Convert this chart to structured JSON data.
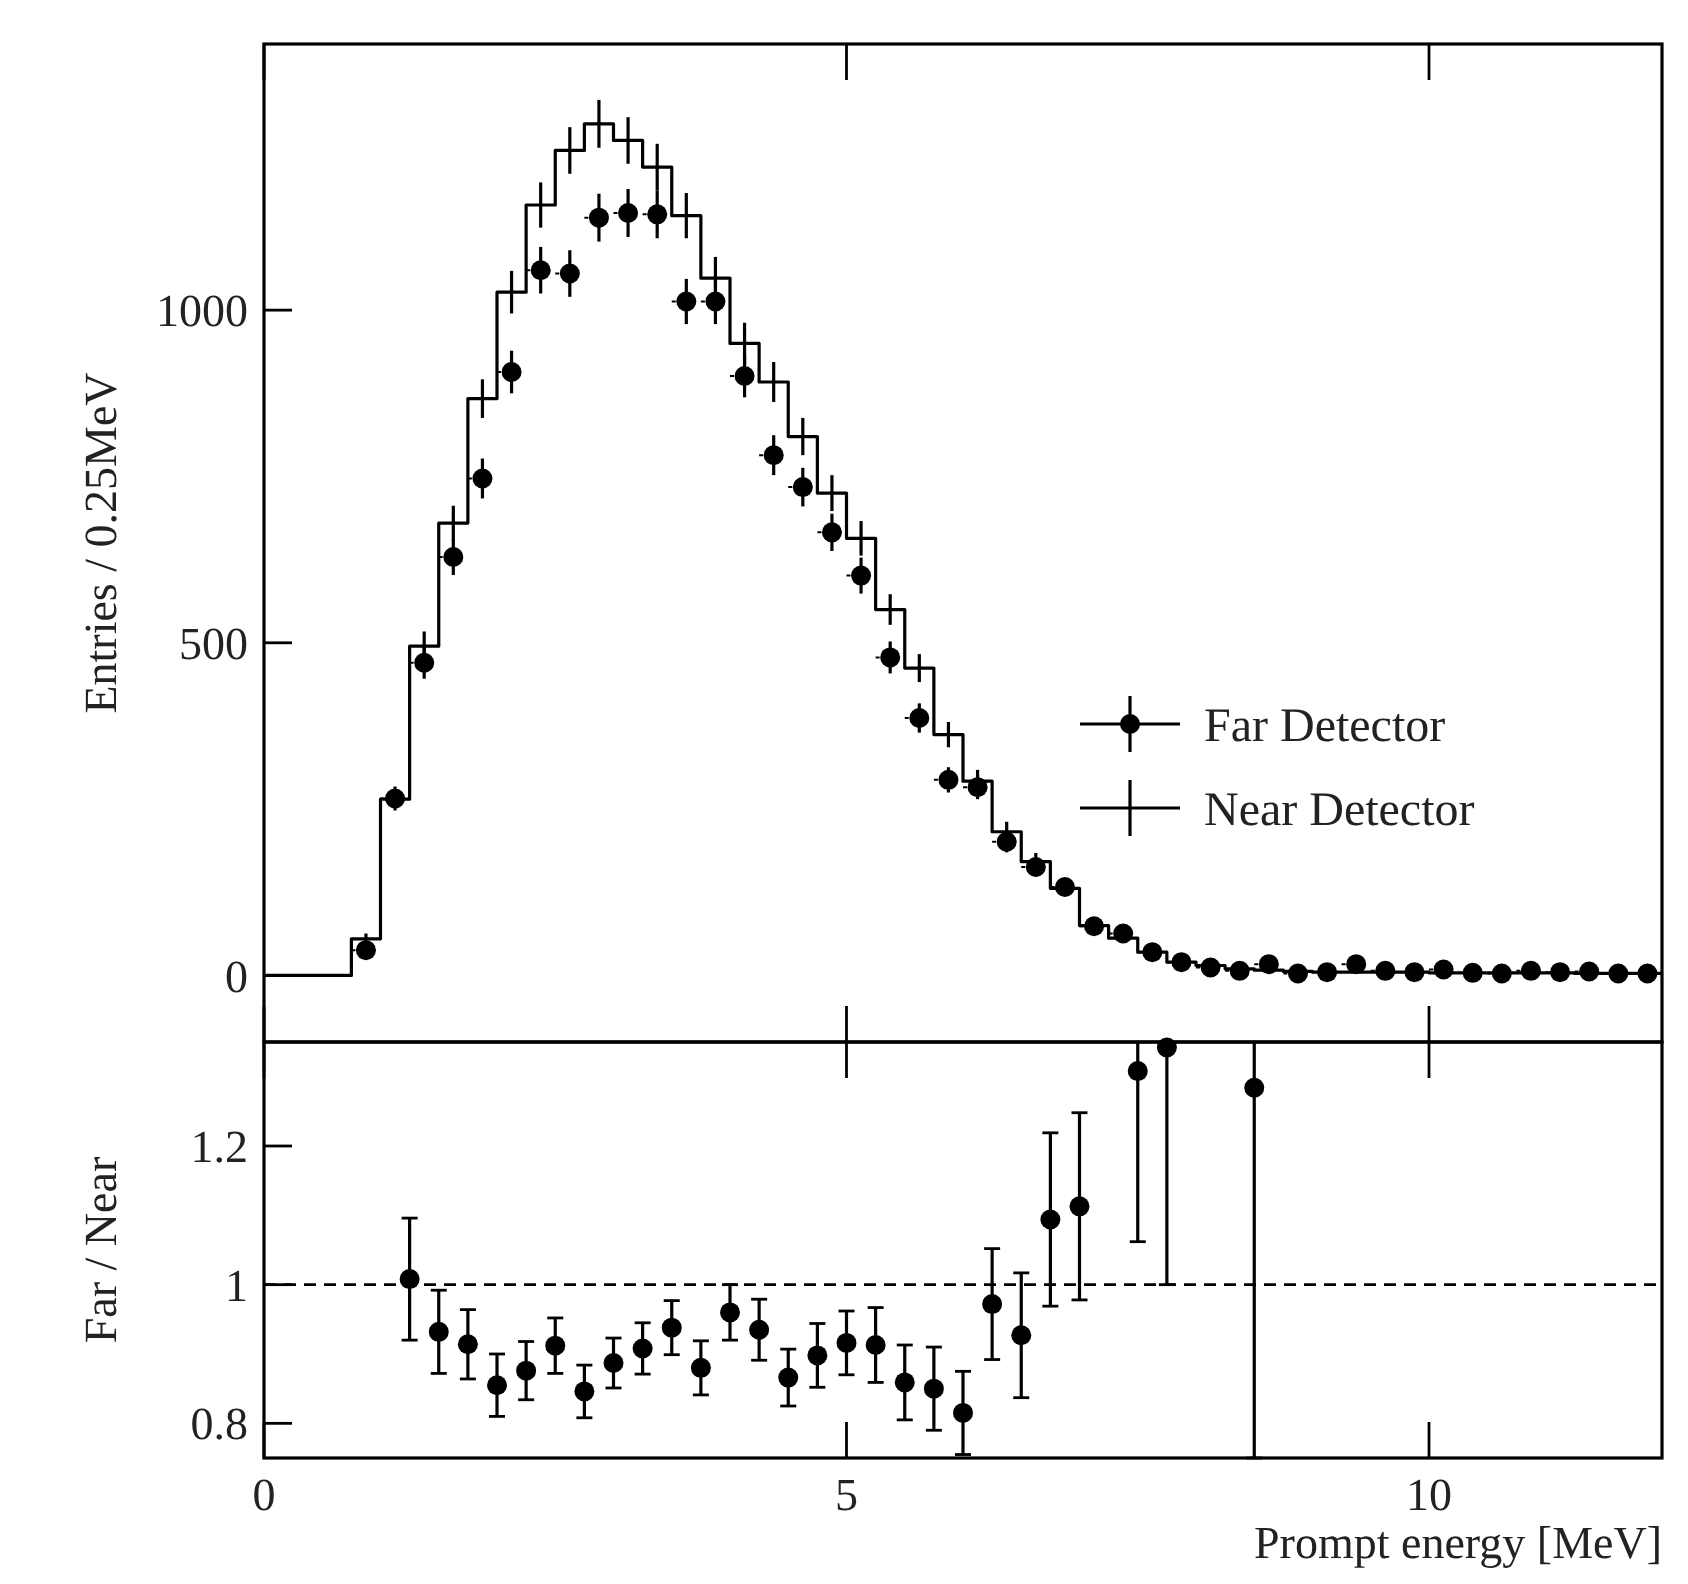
{
  "chart_data": [
    {
      "type": "step",
      "ylabel": "Entries / 0.25MeV",
      "xlim": [
        0,
        12
      ],
      "xticks": [
        0,
        5,
        10
      ],
      "ylim": [
        -100,
        1400
      ],
      "yticks": [
        0,
        500,
        1000
      ],
      "tick_labels": "y",
      "legend": "right",
      "grid": false,
      "series": [
        {
          "name": "Far Detector",
          "type": "scatter",
          "color": "#000000",
          "marker": "circle",
          "x": [
            0.875,
            1.125,
            1.375,
            1.625,
            1.875,
            2.125,
            2.375,
            2.625,
            2.875,
            3.125,
            3.375,
            3.625,
            3.875,
            4.125,
            4.375,
            4.625,
            4.875,
            5.125,
            5.375,
            5.625,
            5.875,
            6.125,
            6.375,
            6.625,
            6.875,
            7.125,
            7.375,
            7.625,
            7.875,
            8.125,
            8.375,
            8.625,
            8.875,
            9.125,
            9.375,
            9.625,
            9.875,
            10.125,
            10.375,
            10.625,
            10.875,
            11.125,
            11.375,
            11.625,
            11.875
          ],
          "values": [
            38,
            266,
            470,
            629,
            747,
            907,
            1060,
            1055,
            1139,
            1146,
            1144,
            1013,
            1013,
            901,
            782,
            734,
            666,
            601,
            478,
            387,
            294,
            283,
            201,
            163,
            133,
            74,
            63,
            35,
            20,
            12,
            7,
            17,
            3,
            5,
            17,
            7,
            5,
            9,
            4,
            3,
            7,
            5,
            6,
            3,
            3
          ],
          "errors": [
            10,
            18,
            24,
            27,
            30,
            32,
            35,
            35,
            36,
            36,
            36,
            34,
            34,
            32,
            30,
            29,
            28,
            27,
            24,
            22,
            19,
            18,
            16,
            14,
            13,
            10,
            9,
            7,
            5,
            4,
            3,
            5,
            2,
            2,
            4,
            3,
            2,
            3,
            2,
            2,
            3,
            2,
            2,
            2,
            2
          ],
          "xerrors": [
            0.125,
            0.125,
            0.125,
            0.125,
            0.125,
            0.125,
            0.125,
            0.125,
            0.125,
            0.125,
            0.125,
            0.125,
            0.125,
            0.125,
            0.125,
            0.125,
            0.125,
            0.125,
            0.125,
            0.125,
            0.125,
            0.125,
            0.125,
            0.125,
            0.125,
            0.125,
            0.125,
            0.125,
            0.125,
            0.125,
            0.125,
            0.125,
            0.125,
            0.125,
            0.125,
            0.125,
            0.125,
            0.125,
            0.125,
            0.125,
            0.125,
            0.125,
            0.125,
            0.125,
            0.125
          ]
        },
        {
          "name": "Near Detector",
          "color": "#000000",
          "x": [
            0,
            0.625,
            0.875,
            1.125,
            1.375,
            1.625,
            1.875,
            2.125,
            2.375,
            2.625,
            2.875,
            3.125,
            3.375,
            3.625,
            3.875,
            4.125,
            4.375,
            4.625,
            4.875,
            5.125,
            5.375,
            5.625,
            5.875,
            6.125,
            6.375,
            6.625,
            6.875,
            7.125,
            7.375,
            7.625,
            7.875,
            8.125,
            8.375,
            8.625,
            8.875,
            9.125,
            9.375,
            9.625,
            9.875,
            10.125,
            10.375,
            10.625,
            10.875,
            11.125,
            11.375,
            11.625,
            11.875,
            12
          ],
          "values": [
            0,
            0,
            55,
            265,
            495,
            680,
            867,
            1027,
            1158,
            1240,
            1280,
            1255,
            1215,
            1142,
            1048,
            950,
            892,
            810,
            725,
            657,
            550,
            462,
            362,
            292,
            216,
            171,
            131,
            75,
            56,
            35,
            20,
            15,
            10,
            8,
            6,
            5,
            5,
            5,
            5,
            4,
            4,
            4,
            4,
            4,
            3,
            3,
            3,
            3
          ],
          "errors": [
            null,
            null,
            8,
            null,
            22,
            26,
            29,
            32,
            34,
            35,
            36,
            35,
            35,
            34,
            32,
            31,
            30,
            28,
            27,
            26,
            23,
            21,
            19,
            17,
            15,
            13,
            11,
            9,
            7,
            6,
            null,
            null,
            null,
            null,
            null,
            null,
            null,
            null,
            null,
            null,
            null,
            null,
            null,
            null,
            null,
            null,
            null,
            null
          ]
        }
      ]
    },
    {
      "type": "scatter",
      "xlabel": "Prompt energy [MeV]",
      "ylabel": "Far / Near",
      "xlim": [
        0,
        12
      ],
      "xticks": [
        0,
        5,
        10
      ],
      "ylim": [
        0.75,
        1.35
      ],
      "yticks": [
        0.8,
        1,
        1.2
      ],
      "grid": false,
      "ref_lines": [
        {
          "axis": "y",
          "value": 1,
          "line_style": "dashed",
          "color": "#000000"
        }
      ],
      "series": [
        {
          "color": "#000000",
          "marker": "circle",
          "x": [
            1.25,
            1.5,
            1.75,
            2,
            2.25,
            2.5,
            2.75,
            3,
            3.25,
            3.5,
            3.75,
            4,
            4.25,
            4.5,
            4.75,
            5,
            5.25,
            5.5,
            5.75,
            6,
            6.25,
            6.5,
            6.75,
            7,
            7.5,
            7.75,
            8.5
          ],
          "values": [
            1.008,
            0.932,
            0.914,
            0.855,
            0.876,
            0.912,
            0.846,
            0.887,
            0.908,
            0.938,
            0.88,
            0.96,
            0.935,
            0.866,
            0.898,
            0.916,
            0.913,
            0.859,
            0.85,
            0.815,
            0.972,
            0.927,
            1.094,
            1.113,
            1.308,
            1.342,
            1.284
          ],
          "errors": [
            0.088,
            0.06,
            0.05,
            0.045,
            0.042,
            0.04,
            0.038,
            0.036,
            0.037,
            0.039,
            0.039,
            0.04,
            0.044,
            0.041,
            0.046,
            0.046,
            0.054,
            0.054,
            0.06,
            0.06,
            0.08,
            0.09,
            0.125,
            0.135,
            [
              1.062,
              1.35
            ],
            [
              1,
              1.35
            ],
            [
              0.75,
              1.35
            ]
          ]
        }
      ]
    }
  ]
}
